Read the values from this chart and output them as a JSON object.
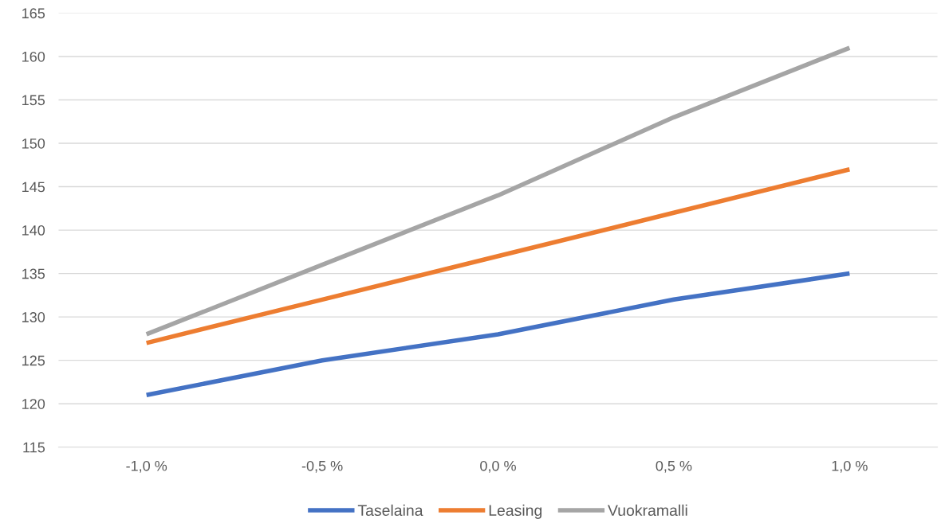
{
  "chart_data": {
    "type": "line",
    "categories": [
      "-1,0 %",
      "-0,5 %",
      "0,0 %",
      "0,5 %",
      "1,0 %"
    ],
    "series": [
      {
        "name": "Taselaina",
        "color": "#4472c4",
        "values": [
          121,
          125,
          128,
          132,
          135
        ]
      },
      {
        "name": "Leasing",
        "color": "#ed7d31",
        "values": [
          127,
          132,
          137,
          142,
          147
        ]
      },
      {
        "name": "Vuokramalli",
        "color": "#a5a5a5",
        "values": [
          128,
          136,
          144,
          153,
          161
        ]
      }
    ],
    "ylim": [
      115,
      165
    ],
    "yticks": [
      115,
      120,
      125,
      130,
      135,
      140,
      145,
      150,
      155,
      160,
      165
    ],
    "grid": "y",
    "legend": "bottom",
    "marker": "none",
    "line_style": "solid"
  }
}
